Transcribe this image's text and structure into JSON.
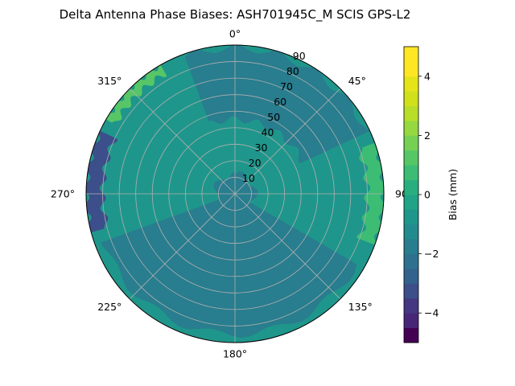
{
  "chart_data": {
    "type": "polar-contour",
    "title": "Delta Antenna Phase Biases: ASH701945C_M    SCIS GPS-L2",
    "angular_ticks": [
      "0°",
      "45°",
      "90°",
      "135°",
      "180°",
      "225°",
      "270°",
      "315°"
    ],
    "angular_tick_degrees": [
      0,
      45,
      90,
      135,
      180,
      225,
      270,
      315
    ],
    "radial_ticks": [
      "10",
      "20",
      "30",
      "40",
      "50",
      "60",
      "70",
      "80",
      "90"
    ],
    "radial_tick_values": [
      10,
      20,
      30,
      40,
      50,
      60,
      70,
      80,
      90
    ],
    "rlim": [
      0,
      90
    ],
    "theta_zero": "top",
    "theta_direction": "clockwise",
    "grid": true,
    "colorbar": {
      "label": "Bias (mm)",
      "ticks": [
        "−4",
        "−2",
        "0",
        "2",
        "4"
      ],
      "tick_values": [
        -4,
        -2,
        0,
        2,
        4
      ],
      "range": [
        -5,
        5
      ],
      "levels": [
        -5,
        -4.5,
        -4,
        -3.5,
        -3,
        -2.5,
        -2,
        -1.5,
        -1,
        -0.5,
        0,
        0.5,
        1,
        1.5,
        2,
        2.5,
        3,
        3.5,
        4,
        4.5,
        5
      ],
      "colors": [
        "#440154",
        "#482677",
        "#453781",
        "#3c4f8a",
        "#33638d",
        "#2d718e",
        "#287d8e",
        "#238a8d",
        "#1f968b",
        "#20a386",
        "#29af7f",
        "#3dbc74",
        "#56c667",
        "#75d054",
        "#95d840",
        "#b8de29",
        "#d0e11c",
        "#e5e419",
        "#fde725",
        "#fde725"
      ]
    },
    "regions": [
      {
        "name": "background",
        "level": 0.5,
        "color": "#1f968b"
      },
      {
        "name": "north-band",
        "level": -0.5,
        "color": "#287d8e",
        "theta": [
          340,
          65
        ],
        "r": [
          45,
          88
        ]
      },
      {
        "name": "south-band",
        "level": -0.5,
        "color": "#287d8e",
        "theta": [
          120,
          250
        ],
        "r": [
          5,
          85
        ]
      },
      {
        "name": "center-core",
        "level": -0.5,
        "color": "#287d8e",
        "theta": [
          0,
          360
        ],
        "r": [
          0,
          12
        ]
      },
      {
        "name": "west-edge",
        "level": -3.5,
        "color": "#3c4f8a",
        "theta": [
          255,
          295
        ],
        "r": [
          80,
          90
        ]
      },
      {
        "name": "east-edge",
        "level": 2.5,
        "color": "#3dbc74",
        "theta": [
          70,
          110
        ],
        "r": [
          80,
          90
        ]
      },
      {
        "name": "ne-edge",
        "level": 3,
        "color": "#56c667",
        "theta": [
          300,
          330
        ],
        "r": [
          84,
          90
        ]
      }
    ]
  }
}
